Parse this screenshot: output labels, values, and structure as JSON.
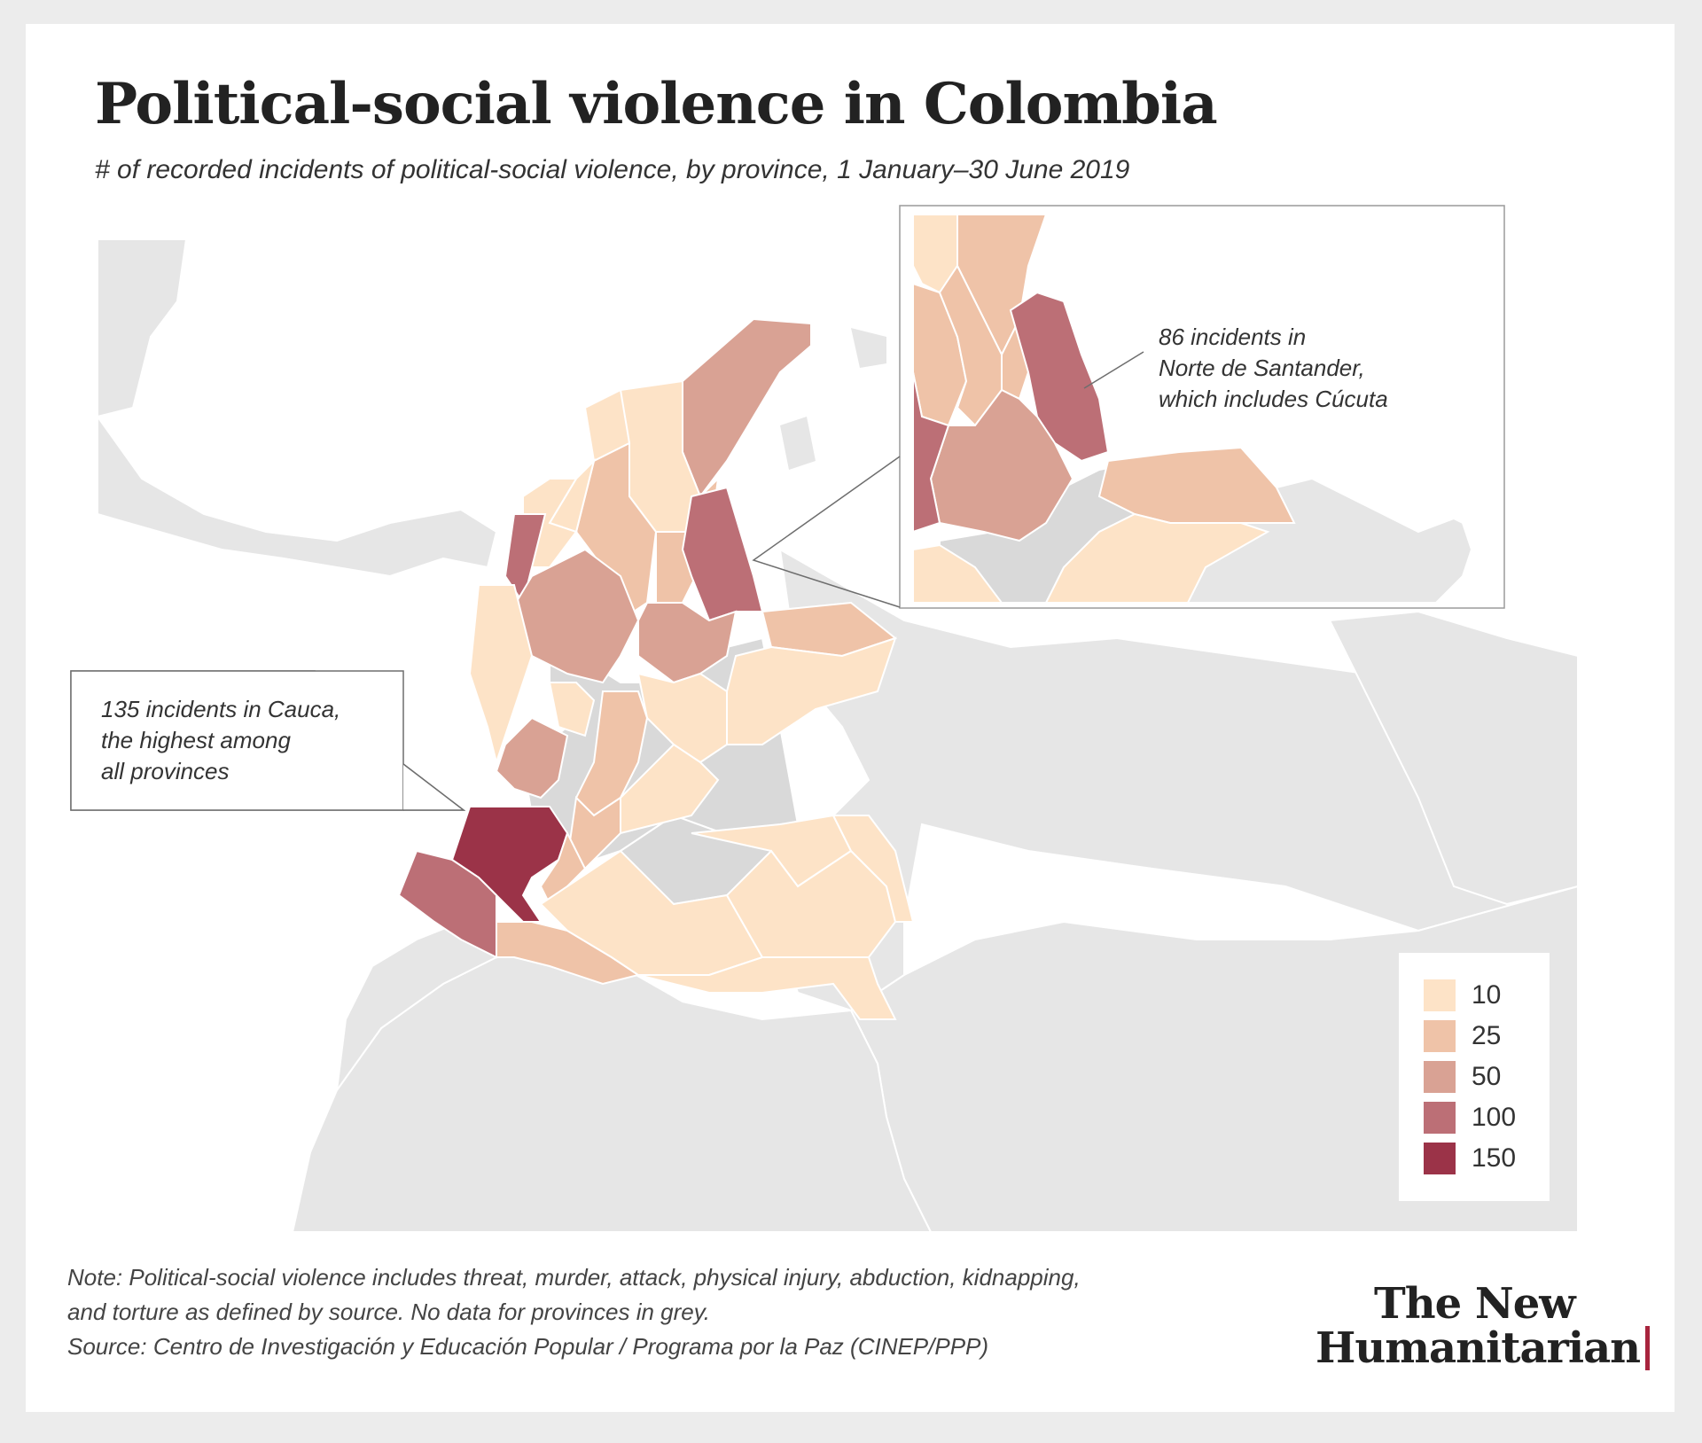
{
  "title": "Political-social violence in Colombia",
  "subtitle": "# of recorded incidents of political-social violence, by province, 1 January–30 June 2019",
  "callouts": {
    "norte_de_santander": {
      "line1": "86 incidents in",
      "line2": "Norte de Santander,",
      "line3": "which includes Cúcuta"
    },
    "cauca": {
      "line1": "135 incidents in Cauca,",
      "line2": "the highest among",
      "line3": "all provinces"
    }
  },
  "legend": {
    "items": [
      {
        "label": "10",
        "color": "#fde3c7"
      },
      {
        "label": "25",
        "color": "#efc3a8"
      },
      {
        "label": "50",
        "color": "#d9a294"
      },
      {
        "label": "100",
        "color": "#bc6f76"
      },
      {
        "label": "150",
        "color": "#9b3348"
      }
    ]
  },
  "note": {
    "line1": "Note: Political-social violence includes threat, murder, attack, physical injury, abduction, kidnapping,",
    "line2": "and torture as defined by source. No data for provinces in grey.",
    "line3": "Source: Centro de Investigación y Educación Popular / Programa por la Paz (CINEP/PPP)"
  },
  "logo": {
    "line1": "The New",
    "line2": "Humanitarian"
  },
  "colors": {
    "no_data": "#d9d9d9",
    "neighbor_land": "#e6e6e6",
    "border": "#ffffff",
    "accent": "#a8243d"
  }
}
